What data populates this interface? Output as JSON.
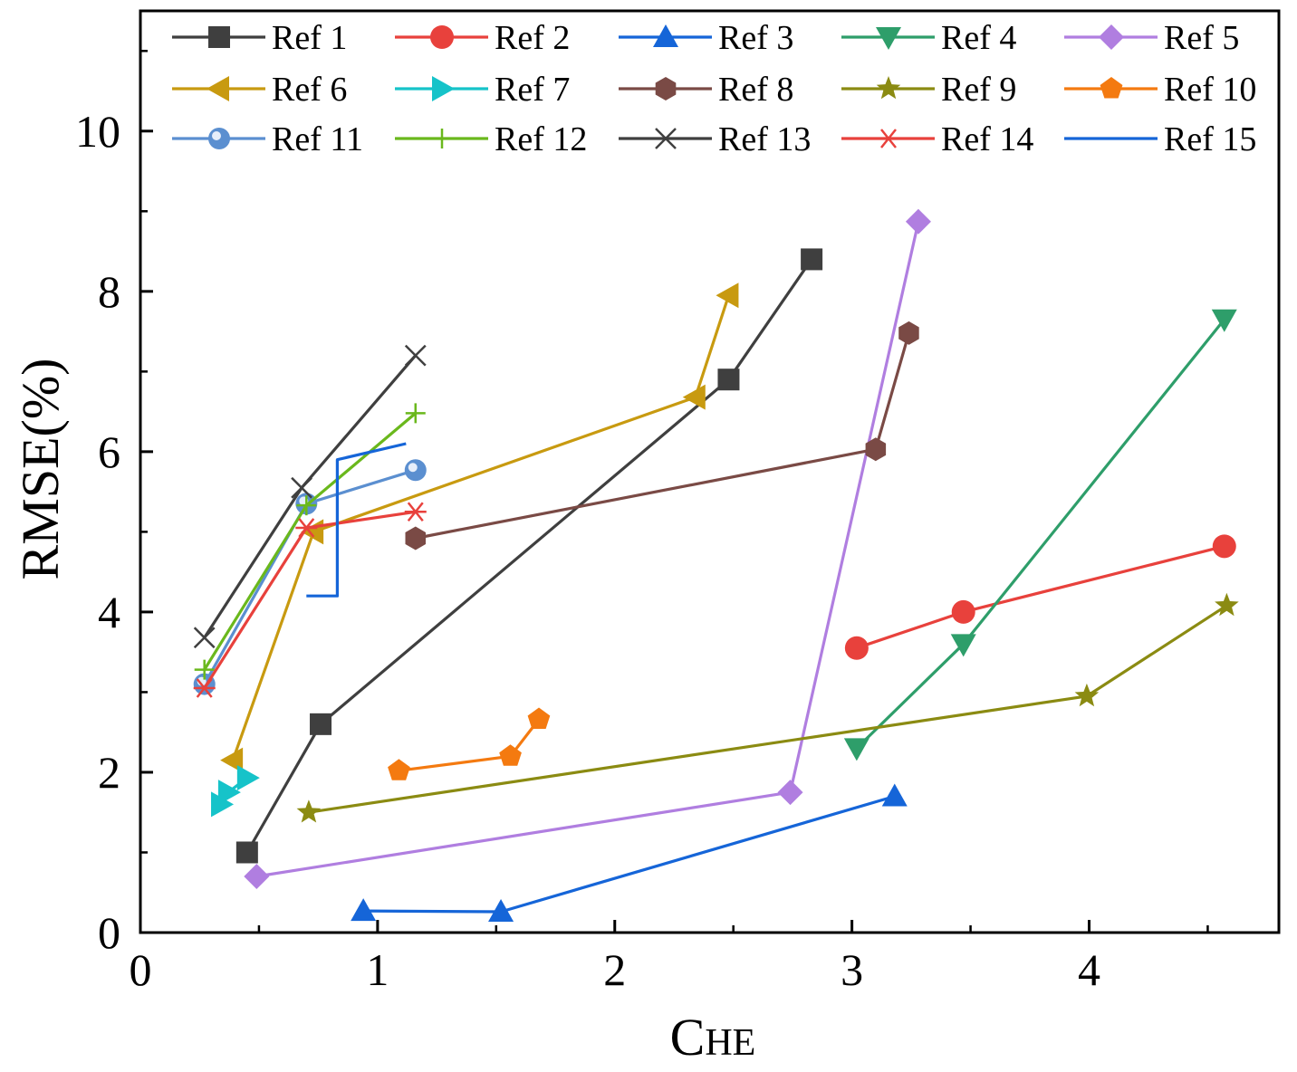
{
  "chart_data": {
    "type": "line",
    "title": "",
    "xlabel_main": "C",
    "xlabel_sub": "HE",
    "ylabel": "RMSE(%)",
    "xlim": [
      0,
      4.8
    ],
    "ylim": [
      0,
      11.5
    ],
    "xticks": [
      0,
      1,
      2,
      3,
      4
    ],
    "xtick_labels": [
      "0",
      "1",
      "2",
      "3",
      "4"
    ],
    "yticks": [
      0,
      2,
      4,
      6,
      8,
      10
    ],
    "ytick_labels": [
      "0",
      "2",
      "4",
      "6",
      "8",
      "10"
    ],
    "grid": false,
    "legend_position": "top",
    "series": [
      {
        "name": "Ref 1",
        "color": "#3f3f3f",
        "marker": "square",
        "x": [
          0.45,
          0.76,
          2.48,
          2.83
        ],
        "y": [
          1.0,
          2.6,
          6.9,
          8.4
        ]
      },
      {
        "name": "Ref 2",
        "color": "#e8413c",
        "marker": "circle",
        "x": [
          3.02,
          3.47,
          4.57
        ],
        "y": [
          3.55,
          4.0,
          4.82
        ]
      },
      {
        "name": "Ref 3",
        "color": "#1565d8",
        "marker": "triangle-up",
        "x": [
          0.94,
          1.52,
          3.18
        ],
        "y": [
          0.27,
          0.26,
          1.7
        ]
      },
      {
        "name": "Ref 4",
        "color": "#2e9e6a",
        "marker": "triangle-down",
        "x": [
          3.02,
          3.47,
          4.57
        ],
        "y": [
          2.3,
          3.6,
          7.65
        ]
      },
      {
        "name": "Ref 5",
        "color": "#b07ee0",
        "marker": "diamond",
        "x": [
          0.49,
          2.74,
          3.28
        ],
        "y": [
          0.7,
          1.75,
          8.87
        ]
      },
      {
        "name": "Ref 6",
        "color": "#c89a10",
        "marker": "triangle-left",
        "x": [
          0.39,
          0.73,
          2.34,
          2.48
        ],
        "y": [
          2.15,
          5.0,
          6.68,
          7.95
        ]
      },
      {
        "name": "Ref 7",
        "color": "#16c3c9",
        "marker": "triangle-right",
        "x": [
          0.34,
          0.37,
          0.45
        ],
        "y": [
          1.6,
          1.75,
          1.93
        ]
      },
      {
        "name": "Ref 8",
        "color": "#7a4a45",
        "marker": "hexagon",
        "x": [
          1.16,
          3.1,
          3.24
        ],
        "y": [
          4.92,
          6.03,
          7.48
        ]
      },
      {
        "name": "Ref 9",
        "color": "#8b8b12",
        "marker": "star",
        "x": [
          0.71,
          3.99,
          4.58
        ],
        "y": [
          1.5,
          2.95,
          4.08
        ]
      },
      {
        "name": "Ref 10",
        "color": "#f47a10",
        "marker": "pentagon",
        "x": [
          1.09,
          1.56,
          1.68
        ],
        "y": [
          2.02,
          2.2,
          2.66
        ]
      },
      {
        "name": "Ref 11",
        "color": "#5b8fd0",
        "marker": "sphere",
        "x": [
          0.27,
          0.7,
          1.16
        ],
        "y": [
          3.1,
          5.35,
          5.77
        ]
      },
      {
        "name": "Ref 12",
        "color": "#6ab81c",
        "marker": "plus",
        "x": [
          0.27,
          0.7,
          1.16
        ],
        "y": [
          3.28,
          5.33,
          6.48
        ]
      },
      {
        "name": "Ref 13",
        "color": "#3f3f3f",
        "marker": "x",
        "x": [
          0.27,
          0.68,
          1.16
        ],
        "y": [
          3.68,
          5.55,
          7.2
        ]
      },
      {
        "name": "Ref 14",
        "color": "#e8413c",
        "marker": "asterisk",
        "x": [
          0.27,
          0.7,
          1.16
        ],
        "y": [
          3.05,
          5.05,
          5.25
        ]
      },
      {
        "name": "Ref 15",
        "color": "#1565d8",
        "marker": "none",
        "x": [
          0.7,
          0.75,
          0.83,
          0.83,
          1.12
        ],
        "y": [
          4.2,
          4.2,
          4.2,
          5.9,
          6.1
        ]
      }
    ]
  }
}
